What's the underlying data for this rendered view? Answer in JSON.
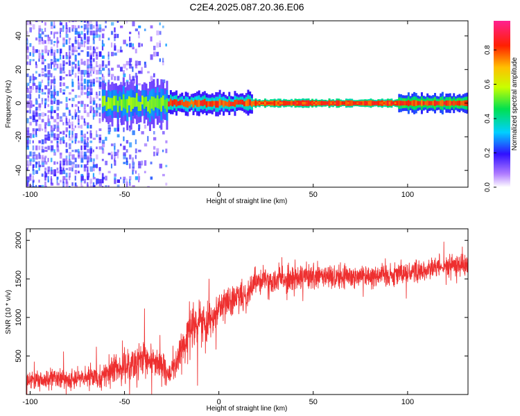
{
  "title": "C2E4.2025.087.20.36.E06",
  "colors": {
    "snr_line": "#ee2f2f",
    "axis": "#000000",
    "background": "#ffffff"
  },
  "chart_data": [
    {
      "type": "heatmap",
      "xlabel": "Height of straight line (km)",
      "ylabel": "Frequency (Hz)",
      "xlim": [
        -102,
        132
      ],
      "ylim": [
        -50,
        49
      ],
      "xticks": [
        -100,
        -50,
        0,
        50,
        100
      ],
      "yticks": [
        -40,
        -20,
        0,
        20,
        40
      ],
      "grid": false,
      "colormap": "rainbow (violet → blue → cyan → green → yellow → orange → red → magenta)",
      "colorbar": {
        "label": "Normalized spectral amplitude",
        "ticks": [
          0.0,
          0.2,
          0.4,
          0.6,
          0.8
        ],
        "range": [
          0,
          0.97
        ],
        "placement": "right"
      },
      "features": [
        {
          "x_range": [
            -102,
            -27
          ],
          "frequency_range": [
            -50,
            49
          ],
          "amplitude": "0.05-0.3",
          "description": "broadband scattered noise"
        },
        {
          "x_range": [
            -62,
            -27
          ],
          "frequency_center": 0,
          "frequency_halfwidth": 8,
          "amplitude": "0.3-0.6"
        },
        {
          "x_range": [
            -27,
            18
          ],
          "frequency_center": 0,
          "frequency_halfwidth": 4,
          "amplitude": "0.4-0.9"
        },
        {
          "x_range": [
            18,
            95
          ],
          "frequency_center": 0,
          "frequency_halfwidth": 1.5,
          "amplitude": "0.9"
        },
        {
          "x_range": [
            95,
            132
          ],
          "frequency_center": 0,
          "frequency_halfwidth": 3.5,
          "amplitude": "0.5-0.9"
        }
      ]
    },
    {
      "type": "line",
      "xlabel": "Height of straight line (km)",
      "ylabel": "SNR (10 * v/v)",
      "xlim": [
        -102,
        132
      ],
      "ylim": [
        0,
        2150
      ],
      "xticks": [
        -100,
        -50,
        0,
        50,
        100
      ],
      "yticks": [
        500,
        1000,
        1500,
        2000
      ],
      "grid": false,
      "series": [
        {
          "x": [
            -102,
            -90,
            -80,
            -70,
            -60,
            -55,
            -50,
            -45,
            -40,
            -35,
            -30,
            -27,
            -25,
            -22,
            -20,
            -17,
            -15,
            -12,
            -10,
            -7,
            -5,
            -2,
            0,
            5,
            10,
            15,
            18,
            20,
            30,
            40,
            50,
            60,
            70,
            80,
            90,
            100,
            110,
            120,
            132
          ],
          "y": [
            180,
            190,
            200,
            220,
            250,
            330,
            360,
            380,
            420,
            450,
            380,
            220,
            330,
            430,
            560,
            700,
            850,
            900,
            950,
            930,
            1000,
            1050,
            1150,
            1200,
            1250,
            1300,
            1450,
            1500,
            1500,
            1510,
            1520,
            1530,
            1540,
            1550,
            1560,
            1580,
            1620,
            1660,
            1700
          ],
          "spread": [
            170,
            170,
            170,
            170,
            190,
            240,
            280,
            300,
            320,
            320,
            260,
            150,
            220,
            260,
            320,
            360,
            380,
            380,
            360,
            330,
            300,
            280,
            260,
            250,
            240,
            240,
            230,
            230,
            230,
            220,
            220,
            220,
            210,
            210,
            210,
            200,
            190,
            180,
            180
          ]
        }
      ]
    }
  ]
}
